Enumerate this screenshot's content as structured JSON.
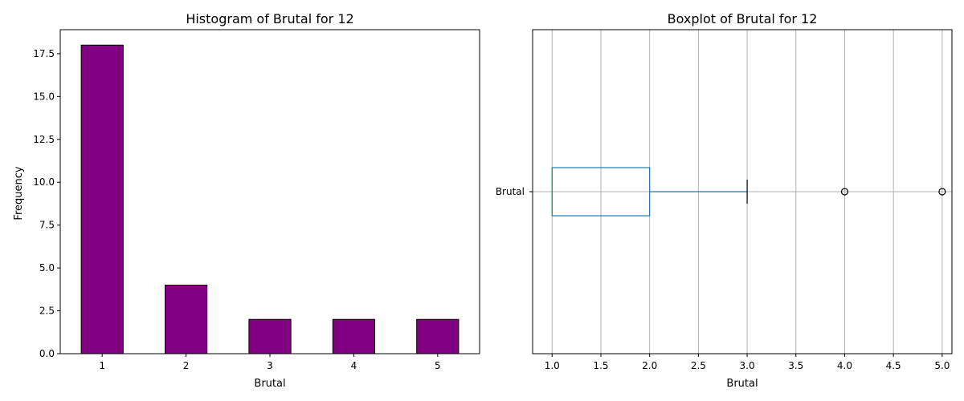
{
  "chart_data": [
    {
      "type": "bar",
      "title": "Histogram of Brutal for 12",
      "xlabel": "Brutal",
      "ylabel": "Frequency",
      "categories": [
        "1",
        "2",
        "3",
        "4",
        "5"
      ],
      "values": [
        18,
        4,
        2,
        2,
        2
      ],
      "ylim": [
        0,
        18.9
      ],
      "yticks": [
        0.0,
        2.5,
        5.0,
        7.5,
        10.0,
        12.5,
        15.0,
        17.5
      ],
      "ytick_labels": [
        "0.0",
        "2.5",
        "5.0",
        "7.5",
        "10.0",
        "12.5",
        "15.0",
        "17.5"
      ],
      "bar_color": "#800080",
      "edge_color": "#000000",
      "grid": false
    },
    {
      "type": "boxplot",
      "orientation": "horizontal",
      "title": "Boxplot of Brutal for 12",
      "xlabel": "Brutal",
      "category_label": "Brutal",
      "xlim": [
        0.8,
        5.1
      ],
      "xticks": [
        1.0,
        1.5,
        2.0,
        2.5,
        3.0,
        3.5,
        4.0,
        4.5,
        5.0
      ],
      "xtick_labels": [
        "1.0",
        "1.5",
        "2.0",
        "2.5",
        "3.0",
        "3.5",
        "4.0",
        "4.5",
        "5.0"
      ],
      "stats": {
        "whisker_low": 1,
        "q1": 1,
        "median": 1,
        "q3": 2,
        "whisker_high": 3,
        "outliers": [
          4,
          5
        ]
      },
      "box_color": "#1f77b4",
      "median_color": "#2ca02c",
      "grid": true
    }
  ]
}
